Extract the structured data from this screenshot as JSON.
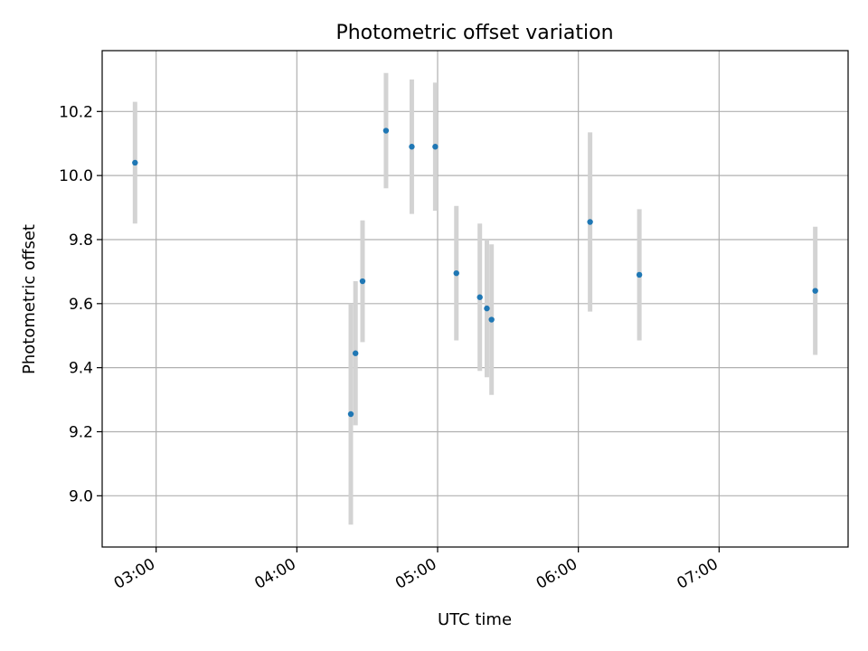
{
  "chart_data": {
    "type": "scatter",
    "title": "Photometric offset variation",
    "xlabel": "UTC time",
    "ylabel": "Photometric offset",
    "xlim": [
      "02:37",
      "07:55"
    ],
    "ylim": [
      8.84,
      10.39
    ],
    "x_ticks": [
      "03:00",
      "04:00",
      "05:00",
      "06:00",
      "07:00"
    ],
    "y_ticks": [
      "9.0",
      "9.2",
      "9.4",
      "9.6",
      "9.8",
      "10.0",
      "10.2"
    ],
    "grid": true,
    "colors": {
      "points": "#1f77b4",
      "errorbars": "#d3d3d3",
      "grid": "#b0b0b0"
    },
    "points": [
      {
        "x": "02:51",
        "y": 10.04,
        "yerr": 0.19
      },
      {
        "x": "04:23",
        "y": 9.255,
        "yerr": 0.345
      },
      {
        "x": "04:25",
        "y": 9.445,
        "yerr": 0.225
      },
      {
        "x": "04:28",
        "y": 9.67,
        "yerr": 0.19
      },
      {
        "x": "04:38",
        "y": 10.14,
        "yerr": 0.18
      },
      {
        "x": "04:49",
        "y": 10.09,
        "yerr": 0.21
      },
      {
        "x": "04:59",
        "y": 10.09,
        "yerr": 0.2
      },
      {
        "x": "05:08",
        "y": 9.695,
        "yerr": 0.21
      },
      {
        "x": "05:18",
        "y": 9.62,
        "yerr": 0.23
      },
      {
        "x": "05:21",
        "y": 9.585,
        "yerr": 0.215
      },
      {
        "x": "05:23",
        "y": 9.55,
        "yerr": 0.235
      },
      {
        "x": "06:05",
        "y": 9.855,
        "yerr": 0.28
      },
      {
        "x": "06:26",
        "y": 9.69,
        "yerr": 0.205
      },
      {
        "x": "07:41",
        "y": 9.64,
        "yerr": 0.2
      }
    ]
  }
}
